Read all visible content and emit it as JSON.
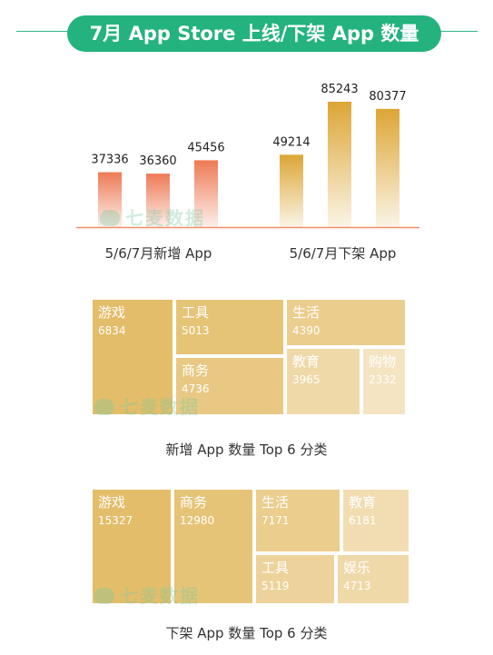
{
  "title": "7月 App Store 上线/下架 App 数量",
  "watermark": "七麦数据",
  "colors": {
    "accent": "#24b37e",
    "new_bar": "#ee7a55",
    "removed_bar": "#dca635",
    "tree_dark": "#e3bd69",
    "tree_mid": "#ebcd8d",
    "tree_light": "#f1ddb1",
    "tree_lighter": "#f4e4c2"
  },
  "chart_data": [
    {
      "type": "bar",
      "groups": [
        {
          "label": "5/6/7月新增 App",
          "values": [
            37336,
            36360,
            45456
          ]
        },
        {
          "label": "5/6/7月下架 App",
          "values": [
            49214,
            85243,
            80377
          ]
        }
      ],
      "categories": [
        "5月",
        "6月",
        "7月"
      ],
      "ylim": [
        0,
        90000
      ]
    },
    {
      "type": "treemap",
      "title": "新增 App 数量 Top 6 分类",
      "items": [
        {
          "name": "游戏",
          "value": "6834"
        },
        {
          "name": "工具",
          "value": "5013"
        },
        {
          "name": "生活",
          "value": "4390"
        },
        {
          "name": "商务",
          "value": "4736"
        },
        {
          "name": "教育",
          "value": "3965"
        },
        {
          "name": "购物",
          "value": "2332"
        }
      ]
    },
    {
      "type": "treemap",
      "title": "下架 App 数量 Top 6 分类",
      "items": [
        {
          "name": "游戏",
          "value": "15327"
        },
        {
          "name": "商务",
          "value": "12980"
        },
        {
          "name": "生活",
          "value": "7171"
        },
        {
          "name": "教育",
          "value": "6181"
        },
        {
          "name": "工具",
          "value": "5119"
        },
        {
          "name": "娱乐",
          "value": "4713"
        }
      ]
    }
  ]
}
